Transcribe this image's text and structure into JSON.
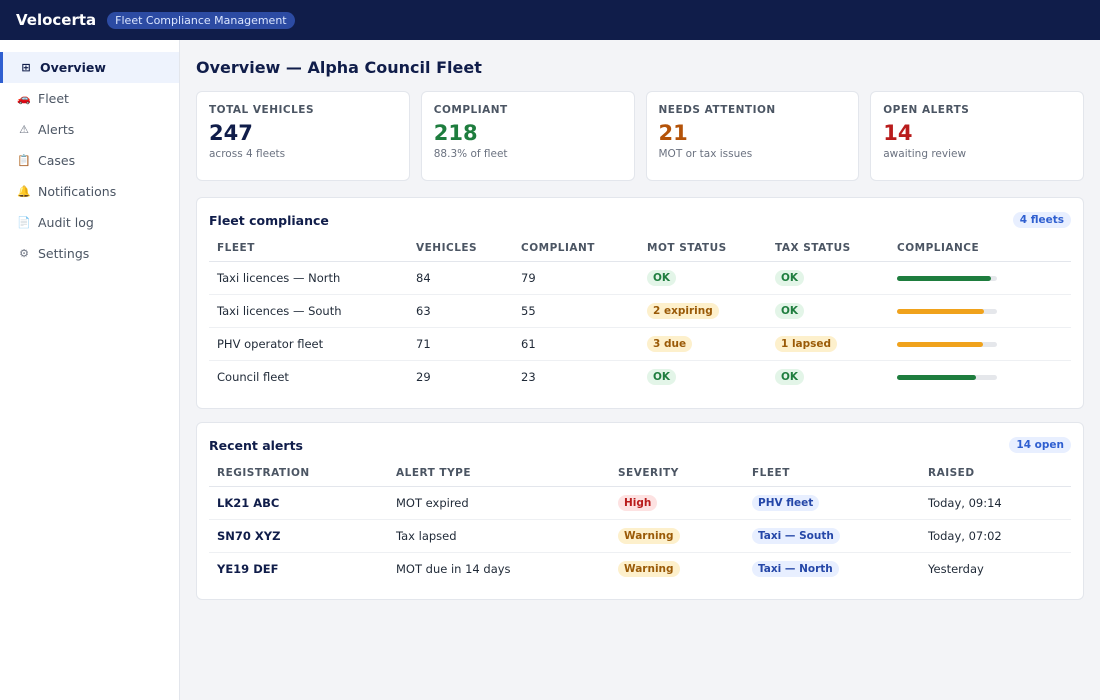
{
  "topbar": {
    "brand": "Velocerta",
    "badge": "Fleet Compliance Management"
  },
  "sidebar": {
    "items": [
      {
        "label": "Overview",
        "icon": "grid-icon",
        "glyph": "⊞",
        "active": true
      },
      {
        "label": "Fleet",
        "icon": "car-icon",
        "glyph": "🚗",
        "active": false
      },
      {
        "label": "Alerts",
        "icon": "warning-icon",
        "glyph": "⚠",
        "active": false
      },
      {
        "label": "Cases",
        "icon": "clipboard-icon",
        "glyph": "📋",
        "active": false
      },
      {
        "label": "Notifications",
        "icon": "bell-icon",
        "glyph": "🔔",
        "active": false
      },
      {
        "label": "Audit log",
        "icon": "document-icon",
        "glyph": "📄",
        "active": false
      },
      {
        "label": "Settings",
        "icon": "gear-icon",
        "glyph": "⚙",
        "active": false
      }
    ]
  },
  "page": {
    "title": "Overview — Alpha Council Fleet"
  },
  "stats": [
    {
      "label": "TOTAL VEHICLES",
      "value": "247",
      "sub": "across 4 fleets",
      "color": "#101d4a"
    },
    {
      "label": "COMPLIANT",
      "value": "218",
      "sub": "88.3% of fleet",
      "color": "#1e7d3e"
    },
    {
      "label": "NEEDS ATTENTION",
      "value": "21",
      "sub": "MOT or tax issues",
      "color": "#b45309"
    },
    {
      "label": "OPEN ALERTS",
      "value": "14",
      "sub": "awaiting review",
      "color": "#b91c1c"
    }
  ],
  "fleet_compliance": {
    "title": "Fleet compliance",
    "count": "4 fleets",
    "headers": [
      "FLEET",
      "VEHICLES",
      "COMPLIANT",
      "MOT STATUS",
      "TAX STATUS",
      "COMPLIANCE"
    ],
    "rows": [
      {
        "fleet": "Taxi licences — North",
        "vehicles": "84",
        "compliant": "79",
        "mot": "OK",
        "mot_kind": "ok",
        "tax": "OK",
        "tax_kind": "ok",
        "compliance": 0.94,
        "bar_color": "#1e7d3e"
      },
      {
        "fleet": "Taxi licences — South",
        "vehicles": "63",
        "compliant": "55",
        "mot": "2 expiring",
        "mot_kind": "warn",
        "tax": "OK",
        "tax_kind": "ok",
        "compliance": 0.87,
        "bar_color": "#f0a21c"
      },
      {
        "fleet": "PHV operator fleet",
        "vehicles": "71",
        "compliant": "61",
        "mot": "3 due",
        "mot_kind": "warn",
        "tax": "1 lapsed",
        "tax_kind": "warn",
        "compliance": 0.86,
        "bar_color": "#f0a21c"
      },
      {
        "fleet": "Council fleet",
        "vehicles": "29",
        "compliant": "23",
        "mot": "OK",
        "mot_kind": "ok",
        "tax": "OK",
        "tax_kind": "ok",
        "compliance": 0.79,
        "bar_color": "#1e7d3e"
      }
    ]
  },
  "recent_alerts": {
    "title": "Recent alerts",
    "count": "14 open",
    "headers": [
      "REGISTRATION",
      "ALERT TYPE",
      "SEVERITY",
      "FLEET",
      "RAISED"
    ],
    "rows": [
      {
        "registration": "LK21 ABC",
        "type": "MOT expired",
        "severity": "High",
        "severity_kind": "high",
        "fleet": "PHV fleet",
        "raised": "Today, 09:14"
      },
      {
        "registration": "SN70 XYZ",
        "type": "Tax lapsed",
        "severity": "Warning",
        "severity_kind": "warn",
        "fleet": "Taxi — South",
        "raised": "Today, 07:02"
      },
      {
        "registration": "YE19 DEF",
        "type": "MOT due in 14 days",
        "severity": "Warning",
        "severity_kind": "warn",
        "fleet": "Taxi — North",
        "raised": "Yesterday"
      }
    ]
  }
}
